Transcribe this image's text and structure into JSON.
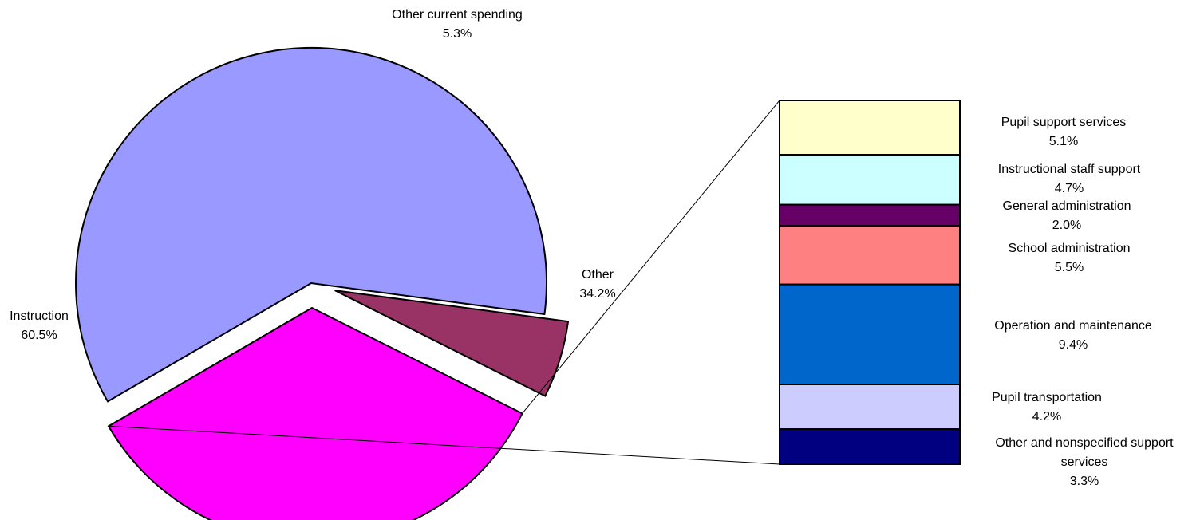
{
  "chart_data": [
    {
      "type": "pie",
      "slices": [
        {
          "name": "Instruction",
          "value_label": "60.5%",
          "value": 60.5,
          "color": "#9999ff",
          "exploded": false
        },
        {
          "name": "Other current spending",
          "value_label": "5.3%",
          "value": 5.3,
          "color": "#993366",
          "exploded": true
        },
        {
          "name": "Other",
          "value_label": "34.2%",
          "value": 34.2,
          "color": "#ff00ff",
          "exploded": true
        }
      ]
    },
    {
      "type": "bar",
      "stacked": true,
      "breakdown_of": "Other",
      "segments": [
        {
          "name": "Pupil support services",
          "value_label": "5.1%",
          "value": 5.1,
          "color": "#ffffcc"
        },
        {
          "name": "Instructional staff support",
          "value_label": "4.7%",
          "value": 4.7,
          "color": "#ccffff"
        },
        {
          "name": "General administration",
          "value_label": "2.0%",
          "value": 2.0,
          "color": "#660066"
        },
        {
          "name": "School administration",
          "value_label": "5.5%",
          "value": 5.5,
          "color": "#ff8080"
        },
        {
          "name": "Operation and maintenance",
          "value_label": "9.4%",
          "value": 9.4,
          "color": "#0066cc"
        },
        {
          "name": "Pupil transportation",
          "value_label": "4.2%",
          "value": 4.2,
          "color": "#ccccff"
        },
        {
          "name": "Other and nonspecified support services",
          "value_label": "3.3%",
          "value": 3.3,
          "color": "#000080"
        }
      ]
    }
  ]
}
